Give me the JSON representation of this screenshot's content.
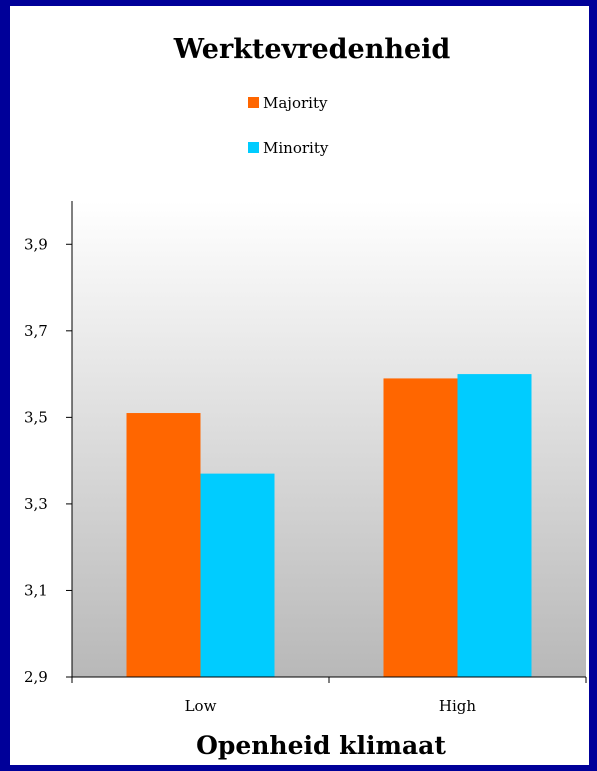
{
  "chart_data": {
    "type": "bar",
    "title": "Werktevredenheid",
    "xlabel": "Openheid klimaat",
    "ylabel": "",
    "categories": [
      "Low",
      "High"
    ],
    "series": [
      {
        "name": "Majority",
        "values": [
          3.51,
          3.59
        ]
      },
      {
        "name": "Minority",
        "values": [
          3.37,
          3.6
        ]
      }
    ],
    "ylim": [
      2.9,
      4.0
    ],
    "yticks": [
      "2,9",
      "3,1",
      "3,3",
      "3,5",
      "3,7",
      "3,9"
    ],
    "ytick_values": [
      2.9,
      3.1,
      3.3,
      3.5,
      3.7,
      3.9
    ],
    "colors": {
      "Majority": "#ff6600",
      "Minority": "#00ccff",
      "border": "#000099"
    },
    "legend": "top-center",
    "grid": false
  }
}
